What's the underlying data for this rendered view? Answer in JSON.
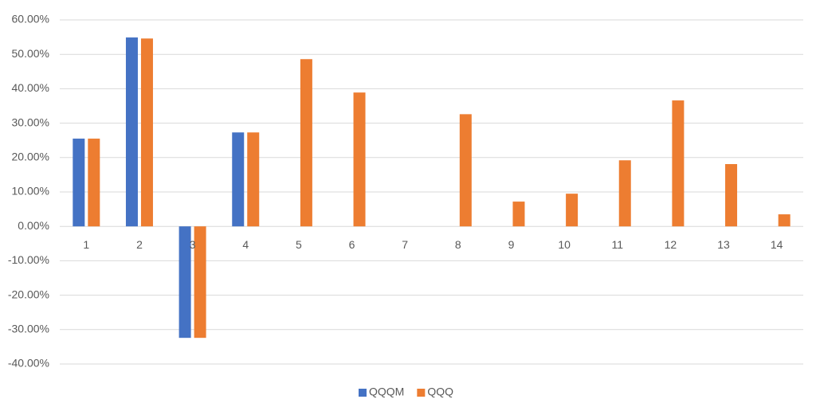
{
  "chart_data": {
    "type": "bar",
    "categories": [
      "1",
      "2",
      "3",
      "4",
      "5",
      "6",
      "7",
      "8",
      "9",
      "10",
      "11",
      "12",
      "13",
      "14"
    ],
    "series": [
      {
        "name": "QQQM",
        "color": "#4472c4",
        "values": [
          25.5,
          54.9,
          -32.4,
          27.3,
          null,
          null,
          null,
          null,
          null,
          null,
          null,
          null,
          null,
          null
        ]
      },
      {
        "name": "QQQ",
        "color": "#ed7d31",
        "values": [
          25.5,
          54.6,
          -32.4,
          27.3,
          48.6,
          38.9,
          null,
          32.6,
          7.2,
          9.5,
          19.2,
          36.6,
          18.1,
          3.5
        ]
      }
    ],
    "ylim": [
      -40,
      60
    ],
    "yticks": [
      {
        "value": -40,
        "label": "-40.00%"
      },
      {
        "value": -30,
        "label": "-30.00%"
      },
      {
        "value": -20,
        "label": "-20.00%"
      },
      {
        "value": -10,
        "label": "-10.00%"
      },
      {
        "value": 0,
        "label": "0.00%"
      },
      {
        "value": 10,
        "label": "10.00%"
      },
      {
        "value": 20,
        "label": "20.00%"
      },
      {
        "value": 30,
        "label": "30.00%"
      },
      {
        "value": 40,
        "label": "40.00%"
      },
      {
        "value": 50,
        "label": "50.00%"
      },
      {
        "value": 60,
        "label": "60.00%"
      }
    ],
    "grid": true,
    "legend": "bottom"
  }
}
